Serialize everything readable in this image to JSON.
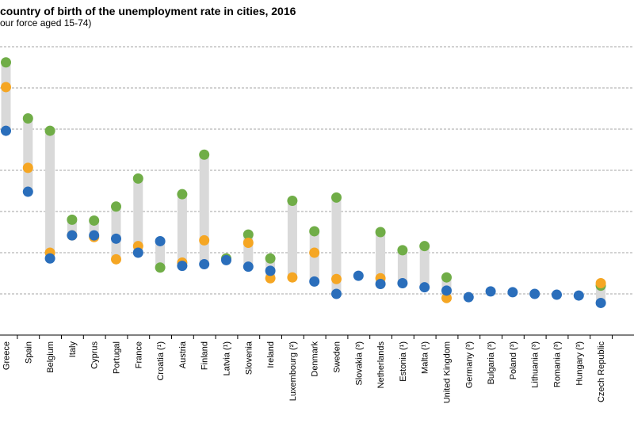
{
  "chart_data": {
    "type": "scatter",
    "title": "country of birth of the unemployment rate in cities, 2016",
    "subtitle": "our force aged 15-74)",
    "xlabel": "",
    "ylabel": "",
    "ylim": [
      0,
      35
    ],
    "gridlines": [
      5,
      10,
      15,
      20,
      25,
      30,
      35
    ],
    "grid": true,
    "categories": [
      "Greece",
      "Spain",
      "Belgium",
      "Italy",
      "Cyprus",
      "Portugal",
      "France",
      "Croatia (¹)",
      "Austria",
      "Finland",
      "Latvia (¹)",
      "Slovenia",
      "Ireland",
      "Luxembourg (²)",
      "Denmark",
      "Sweden",
      "Slovakia (³)",
      "Netherlands",
      "Estonia (¹)",
      "Malta (¹)",
      "United Kingdom",
      "Germany (³)",
      "Bulgaria (³)",
      "Poland (³)",
      "Lithuania (³)",
      "Romania (³)",
      "Hungary (³)",
      "Czech Republic"
    ],
    "series": [
      {
        "color": "#70ad47",
        "values": [
          33.1,
          26.3,
          24.8,
          14.0,
          13.9,
          15.6,
          19.0,
          8.2,
          17.1,
          21.9,
          9.3,
          12.2,
          9.3,
          16.3,
          12.6,
          16.7,
          null,
          12.5,
          10.3,
          10.8,
          7.0,
          null,
          null,
          null,
          null,
          null,
          null,
          6.0
        ]
      },
      {
        "color": "#f5a623",
        "values": [
          30.1,
          20.3,
          10.0,
          12.1,
          11.9,
          9.2,
          10.8,
          null,
          8.8,
          11.5,
          null,
          11.2,
          6.9,
          7.0,
          10.0,
          6.8,
          null,
          6.9,
          null,
          null,
          4.5,
          null,
          null,
          null,
          null,
          null,
          null,
          6.3
        ]
      },
      {
        "color": "#2a6ebb",
        "values": [
          24.8,
          17.4,
          9.3,
          12.1,
          12.1,
          11.7,
          10.0,
          11.4,
          8.4,
          8.6,
          9.1,
          8.3,
          7.8,
          null,
          6.5,
          5.0,
          7.2,
          6.2,
          6.3,
          5.8,
          5.4,
          4.6,
          5.3,
          5.2,
          5.0,
          4.9,
          4.8,
          3.9
        ]
      }
    ],
    "range_bar_color": "#d9d9d9",
    "grid_color": "#a6a6a6"
  }
}
